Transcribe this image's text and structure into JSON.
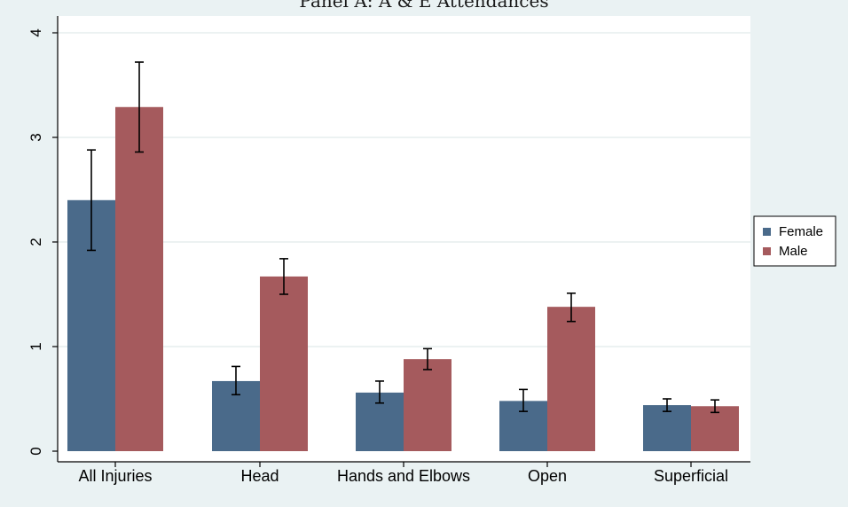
{
  "chart_data": {
    "type": "bar",
    "title": "Panel A: A & E Attendances",
    "categories": [
      "All Injuries",
      "Head",
      "Hands and Elbows",
      "Open",
      "Superficial"
    ],
    "ylim": [
      0,
      4
    ],
    "yticks": [
      0,
      1,
      2,
      3,
      4
    ],
    "grid": true,
    "legend_position": "right",
    "series": [
      {
        "name": "Female",
        "color": "#4a6a8a",
        "values": [
          2.4,
          0.67,
          0.56,
          0.48,
          0.44
        ],
        "ci_low": [
          1.92,
          0.54,
          0.46,
          0.38,
          0.38
        ],
        "ci_high": [
          2.88,
          0.81,
          0.67,
          0.59,
          0.5
        ]
      },
      {
        "name": "Male",
        "color": "#a55a5d",
        "values": [
          3.29,
          1.67,
          0.88,
          1.38,
          0.43
        ],
        "ci_low": [
          2.86,
          1.5,
          0.78,
          1.24,
          0.37
        ],
        "ci_high": [
          3.72,
          1.84,
          0.98,
          1.51,
          0.49
        ]
      }
    ]
  }
}
